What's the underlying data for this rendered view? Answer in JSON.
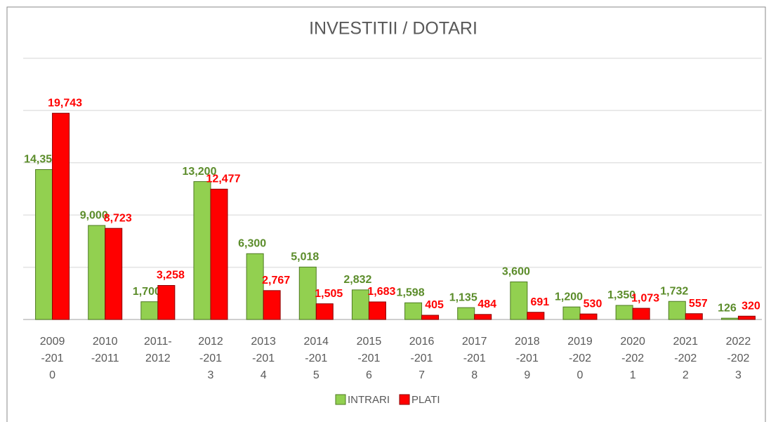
{
  "chart_data": {
    "type": "bar",
    "title": "INVESTITII / DOTARI",
    "categories": [
      "2009-2010",
      "2010-2011",
      "2011-2012",
      "2012-2013",
      "2013-2014",
      "2014-2015",
      "2015-2016",
      "2016-2017",
      "2017-2018",
      "2018-2019",
      "2019-2020",
      "2020-2021",
      "2021-2022",
      "2022-2023"
    ],
    "series": [
      {
        "name": "INTRARI",
        "color": "#92d050",
        "label_color": "#5b8c2a",
        "values": [
          14350,
          9000,
          1700,
          13200,
          6300,
          5018,
          2832,
          1598,
          1135,
          3600,
          1200,
          1350,
          1732,
          126
        ],
        "value_labels": [
          "14,350",
          "9,000",
          "1,700",
          "13,200",
          "6,300",
          "5,018",
          "2,832",
          "1,598",
          "1,135",
          "3,600",
          "1,200",
          "1,350",
          "1,732",
          "126"
        ]
      },
      {
        "name": "PLATI",
        "color": "#ff0000",
        "label_color": "#ff0000",
        "values": [
          19743,
          8723,
          3258,
          12477,
          2767,
          1505,
          1683,
          405,
          484,
          691,
          530,
          1073,
          557,
          320
        ],
        "value_labels": [
          "19,743",
          "8,723",
          "3,258",
          "12,477",
          "2,767",
          "1,505",
          "1,683",
          "405",
          "484",
          "691",
          "530",
          "1,073",
          "557",
          "320"
        ]
      }
    ],
    "ylim": [
      0,
      25000
    ],
    "yticks": [
      0,
      5000,
      10000,
      15000,
      20000,
      25000
    ],
    "grid": true,
    "legend": "bottom"
  }
}
